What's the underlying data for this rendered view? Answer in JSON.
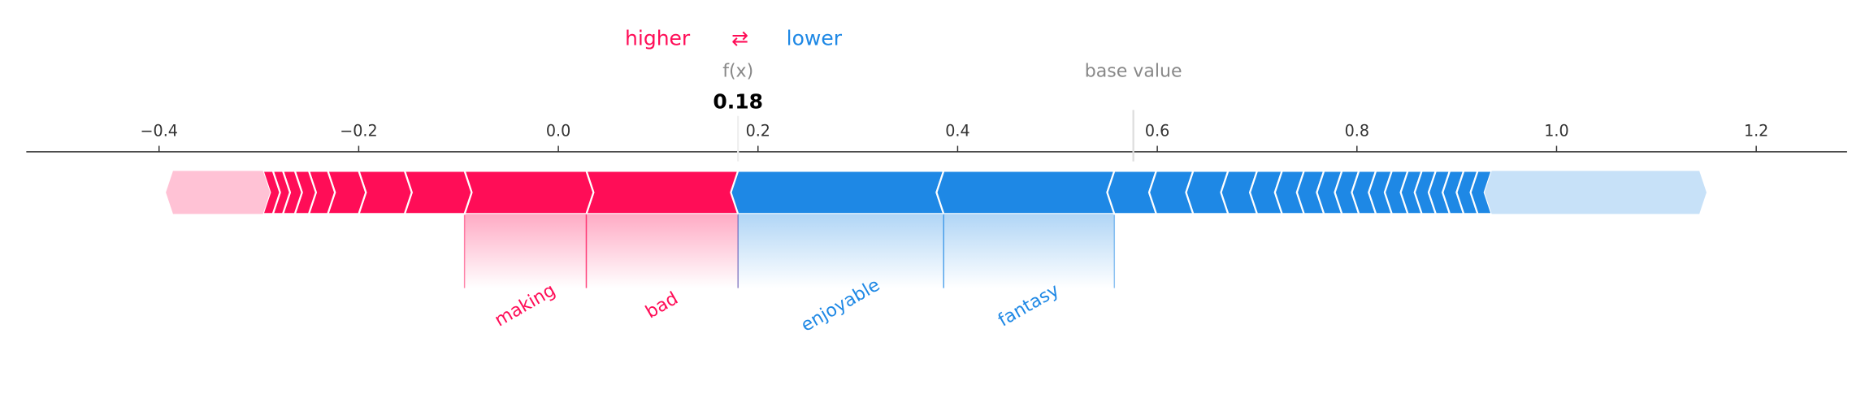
{
  "chart_data": {
    "type": "force",
    "legend": {
      "higher": "higher",
      "arrow": "⇄",
      "lower": "lower"
    },
    "output_label": "f(x)",
    "output_value": 0.18,
    "base_label": "base value",
    "base_value": 0.576,
    "xlim": [
      -0.533,
      1.291
    ],
    "xticks": [
      {
        "value": -0.4,
        "label": "−0.4"
      },
      {
        "value": -0.2,
        "label": "−0.2"
      },
      {
        "value": 0,
        "label": "0.0"
      },
      0.2,
      0.4,
      0.6,
      0.8,
      {
        "value": 1,
        "label": "1.0"
      },
      1.2
    ],
    "higher_color": "#ff0d57",
    "lower_color": "#1e88e5",
    "higher_features": {
      "names": [
        "bad",
        "making",
        null,
        null,
        null,
        null,
        null,
        null,
        null,
        null,
        null
      ],
      "values": [
        0.152,
        0.122,
        0.06,
        0.046,
        0.031,
        0.019,
        0.014,
        0.012,
        0.01,
        0.01,
        0.09
      ]
    },
    "lower_features": {
      "names": [
        "enjoyable",
        "fantasy",
        null,
        null,
        null,
        null,
        null,
        null,
        null,
        null,
        null,
        null,
        null,
        null,
        null,
        null,
        null,
        null,
        null,
        null,
        null
      ],
      "values": [
        0.206,
        0.171,
        0.042,
        0.037,
        0.035,
        0.029,
        0.025,
        0.022,
        0.02,
        0.018,
        0.017,
        0.017,
        0.016,
        0.016,
        0.014,
        0.014,
        0.014,
        0.014,
        0.014,
        0.014,
        0.208
      ]
    }
  }
}
